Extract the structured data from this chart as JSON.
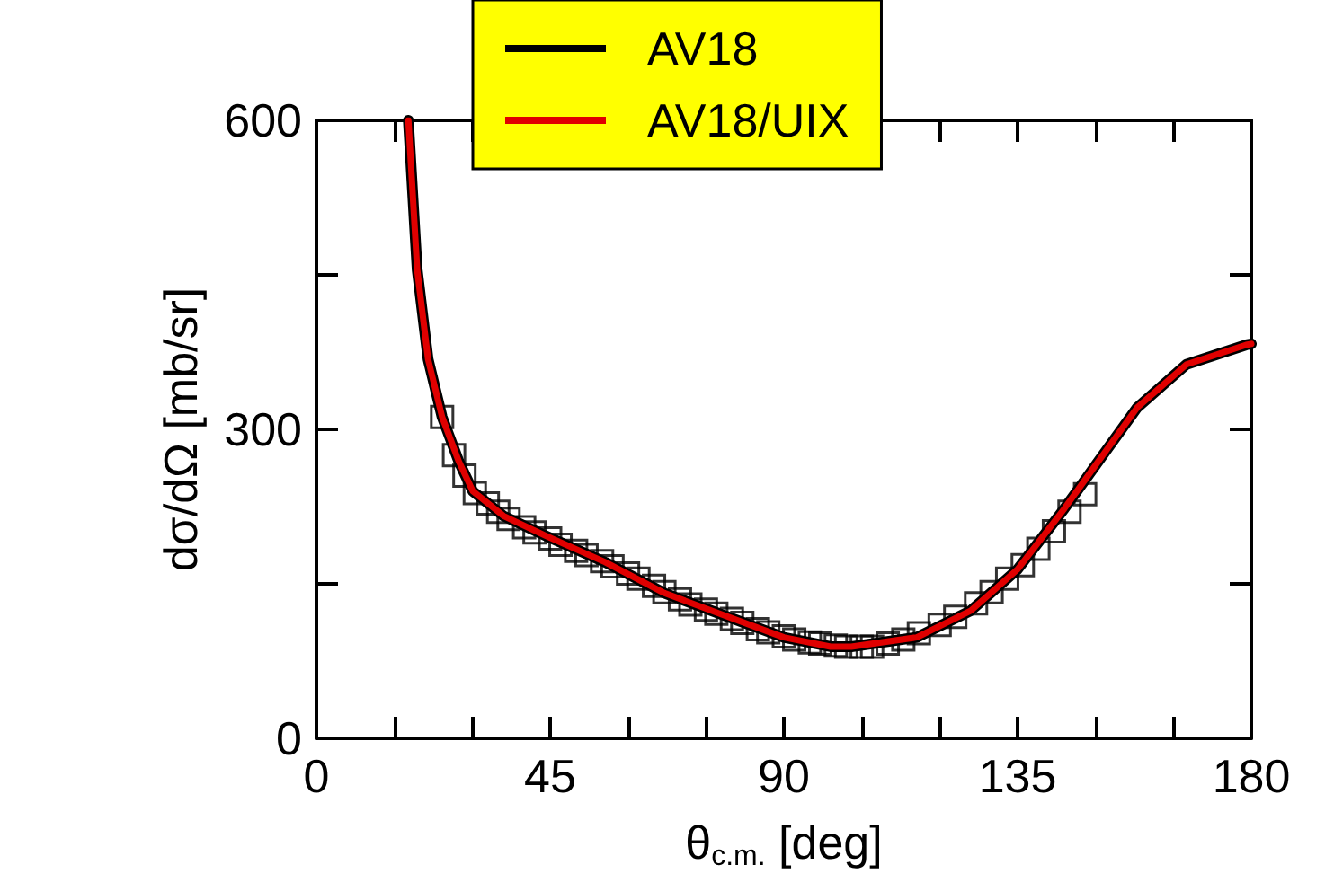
{
  "chart_data": {
    "type": "line",
    "xlabel": "θ$_{c.m.}$ [deg]",
    "ylabel": "dσ/dΩ [mb/sr]",
    "xlim": [
      0,
      180
    ],
    "ylim": [
      0,
      600
    ],
    "xticks": [
      0,
      {
        "value": 15,
        "label": null
      },
      {
        "value": 30,
        "label": null
      },
      45,
      {
        "value": 60,
        "label": null
      },
      {
        "value": 75,
        "label": null
      },
      90,
      {
        "value": 105,
        "label": null
      },
      {
        "value": 120,
        "label": null
      },
      135,
      {
        "value": 150,
        "label": null
      },
      {
        "value": 165,
        "label": null
      },
      180
    ],
    "yticks": [
      0,
      {
        "value": 150,
        "label": null
      },
      300,
      {
        "value": 450,
        "label": null
      },
      600
    ],
    "grid": false,
    "legend": "top",
    "marker": "none",
    "line_style": "solid",
    "series": [
      {
        "name": "AV18",
        "color": "#000000",
        "x": [
          17.7,
          19.4,
          21.5,
          24.2,
          27.4,
          30.1,
          36,
          44,
          55.6,
          67,
          78.7,
          90,
          99,
          103,
          115.6,
          126,
          135,
          144,
          149,
          158,
          167.5,
          179,
          180
        ],
        "values": [
          600,
          455,
          368,
          312,
          269,
          240,
          216,
          197,
          171,
          141,
          119,
          98,
          89,
          89,
          98,
          124,
          164,
          223,
          258,
          321,
          363,
          382,
          383
        ]
      },
      {
        "name": "AV18/UIX",
        "color": "#e00000",
        "x": [
          17.7,
          19.4,
          21.5,
          24.2,
          27.4,
          30.1,
          36,
          44,
          55.6,
          67,
          78.7,
          90,
          99,
          103,
          115.6,
          126,
          135,
          144,
          149,
          158,
          167.5,
          179,
          180
        ],
        "values": [
          600,
          455,
          368,
          312,
          269,
          240,
          216,
          197,
          171,
          141,
          119,
          98,
          89,
          89,
          98,
          124,
          164,
          223,
          258,
          321,
          363,
          382,
          383
        ]
      },
      {
        "type": "scatter",
        "marker": "square",
        "color": "#000000",
        "x": [
          24.2,
          26.5,
          28.5,
          30.5,
          33,
          35,
          37,
          40,
          42,
          45,
          47,
          50,
          52,
          55,
          57,
          60,
          62,
          65,
          67,
          70,
          72,
          75,
          77,
          80,
          82,
          85,
          87,
          90,
          92,
          95,
          97,
          100,
          102,
          105,
          107,
          110,
          113,
          116,
          120,
          123,
          127,
          130,
          133,
          136,
          139,
          142,
          145,
          148
        ],
        "values": [
          312,
          275,
          255,
          238,
          228,
          220,
          213,
          205,
          200,
          194,
          188,
          182,
          178,
          172,
          167,
          160,
          155,
          148,
          142,
          135,
          130,
          125,
          121,
          116,
          112,
          106,
          103,
          99,
          96,
          93,
          92,
          90,
          89,
          89,
          89,
          92,
          96,
          102,
          110,
          118,
          131,
          142,
          155,
          168,
          184,
          201,
          220,
          237
        ]
      }
    ]
  }
}
